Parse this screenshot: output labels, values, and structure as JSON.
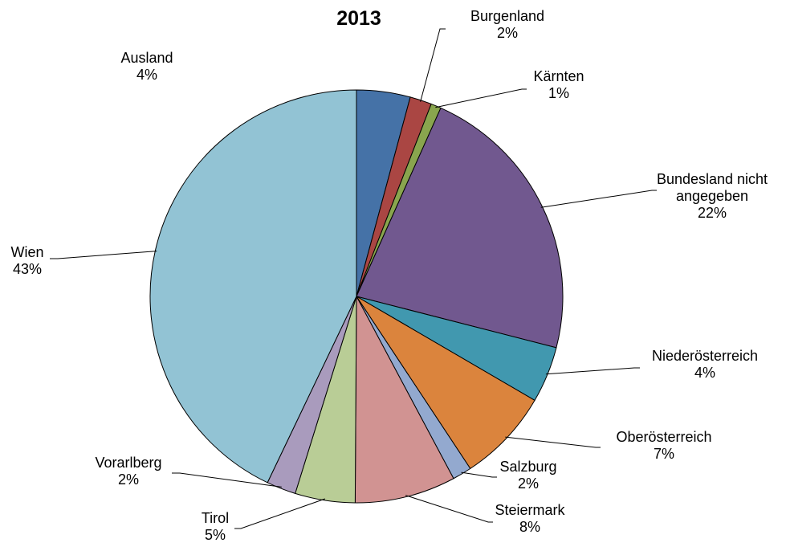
{
  "chart_data": {
    "type": "pie",
    "title": "2013",
    "start_angle_deg": 0,
    "direction": "clockwise",
    "legend": "none",
    "slices": [
      {
        "label": "Ausland",
        "pct_label": "4%",
        "value": 4.2,
        "color": "#4572A7"
      },
      {
        "label": "Burgenland",
        "pct_label": "2%",
        "value": 1.7,
        "color": "#AA4643"
      },
      {
        "label": "Kärnten",
        "pct_label": "1%",
        "value": 0.8,
        "color": "#89A54E"
      },
      {
        "label": "Bundesland nicht angegeben",
        "label_lines": [
          "Bundesland nicht",
          "angegeben"
        ],
        "pct_label": "22%",
        "value": 22.3,
        "color": "#71588F"
      },
      {
        "label": "Niederösterreich",
        "pct_label": "4%",
        "value": 4.4,
        "color": "#4198AF"
      },
      {
        "label": "Oberösterreich",
        "pct_label": "7%",
        "value": 7.3,
        "color": "#DB843D"
      },
      {
        "label": "Salzburg",
        "pct_label": "2%",
        "value": 1.5,
        "color": "#93A9CF"
      },
      {
        "label": "Steiermark",
        "pct_label": "8%",
        "value": 7.9,
        "color": "#D19392"
      },
      {
        "label": "Tirol",
        "pct_label": "5%",
        "value": 4.7,
        "color": "#B9CD96"
      },
      {
        "label": "Vorarlberg",
        "pct_label": "2%",
        "value": 2.3,
        "color": "#A99BBD"
      },
      {
        "label": "Wien",
        "pct_label": "43%",
        "value": 42.9,
        "color": "#92C3D4"
      }
    ]
  }
}
